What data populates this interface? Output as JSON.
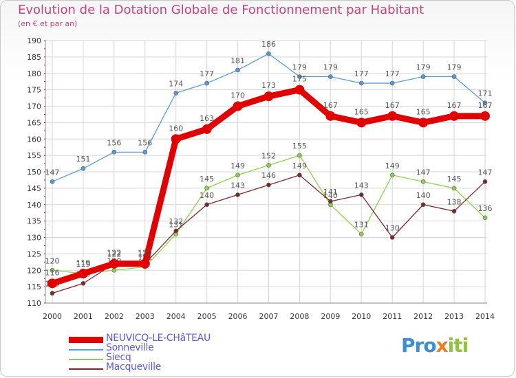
{
  "header": {
    "title": "Evolution de la Dotation Globale de Fonctionnement par Habitant",
    "subtitle": "(en € et par an)"
  },
  "logo": {
    "text": "Proxiti",
    "part1": "Pro",
    "part2": "x",
    "part3": "iti"
  },
  "chart_data": {
    "type": "line",
    "title": "Evolution de la Dotation Globale de Fonctionnement par Habitant",
    "subtitle": "(en € et par an)",
    "xlabel": "",
    "ylabel": "",
    "ylim": [
      110,
      190
    ],
    "ytick_step": 5,
    "grid": true,
    "legend_position": "bottom-left",
    "x": [
      2000,
      2001,
      2002,
      2003,
      2004,
      2005,
      2006,
      2007,
      2008,
      2009,
      2010,
      2011,
      2012,
      2013,
      2014
    ],
    "series": [
      {
        "name": "Sonneville",
        "color": "#5b9bd5",
        "values": [
          147,
          151,
          156,
          156,
          174,
          177,
          181,
          186,
          179,
          179,
          177,
          177,
          179,
          179,
          171
        ]
      },
      {
        "name": "Siecq",
        "color": "#8fd14f",
        "values": [
          120,
          119,
          120,
          121,
          131,
          145,
          149,
          152,
          155,
          140,
          131,
          149,
          147,
          145,
          136
        ]
      },
      {
        "name": "Macqueville",
        "color": "#7a2a2a",
        "values": [
          113,
          116,
          122,
          122,
          132,
          140,
          143,
          146,
          149,
          141,
          143,
          130,
          140,
          138,
          147
        ]
      },
      {
        "name": "NEUVICQ-LE-CHâTEAU",
        "color": "#e00000",
        "values": [
          116,
          119,
          122,
          122,
          160,
          163,
          170,
          173,
          175,
          167,
          165,
          167,
          165,
          167,
          167
        ]
      }
    ],
    "legend_order": [
      "NEUVICQ-LE-CHâTEAU",
      "Sonneville",
      "Siecq",
      "Macqueville"
    ]
  }
}
